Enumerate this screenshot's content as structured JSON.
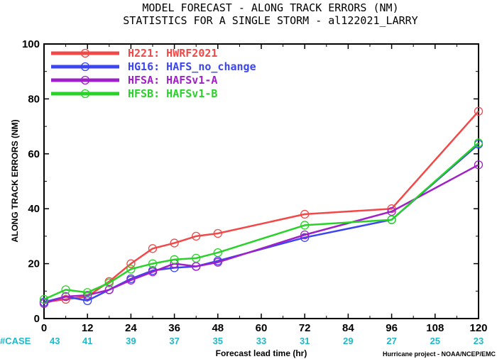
{
  "chart_data": {
    "type": "line",
    "title_lines": [
      "MODEL FORECAST - ALONG TRACK ERRORS (NM)",
      "STATISTICS FOR A SINGLE STORM - al122021_LARRY"
    ],
    "xlabel": "Forecast lead time (hr)",
    "ylabel": "ALONG TRACK ERRORS (NM)",
    "xlim": [
      0,
      120
    ],
    "ylim": [
      0,
      100
    ],
    "x_ticks": [
      0,
      12,
      24,
      36,
      48,
      60,
      72,
      84,
      96,
      108,
      120
    ],
    "y_ticks": [
      0,
      20,
      40,
      60,
      80,
      100
    ],
    "legend_position": "top-left",
    "case_label": "#CASE",
    "case_counts": [
      43,
      41,
      39,
      37,
      35,
      33,
      31,
      29,
      27,
      25,
      23
    ],
    "credit": "Hurricane project - NOAA/NCEP/EMC",
    "series": [
      {
        "name": "H221: HWRF2021",
        "color": "#f24848",
        "points": [
          [
            0,
            6
          ],
          [
            6,
            7
          ],
          [
            12,
            8
          ],
          [
            18,
            13.5
          ],
          [
            24,
            20
          ],
          [
            30,
            25.5
          ],
          [
            36,
            27.5
          ],
          [
            42,
            30
          ],
          [
            48,
            31
          ],
          [
            72,
            38
          ],
          [
            96,
            40
          ],
          [
            120,
            75.5
          ]
        ]
      },
      {
        "name": "HG16: HAFS_no_change",
        "color": "#3c46f0",
        "points": [
          [
            0,
            6
          ],
          [
            6,
            8
          ],
          [
            12,
            6.5
          ],
          [
            18,
            10.5
          ],
          [
            24,
            14.5
          ],
          [
            30,
            17.5
          ],
          [
            36,
            18.5
          ],
          [
            42,
            19
          ],
          [
            48,
            21
          ],
          [
            72,
            29.5
          ],
          [
            96,
            36
          ],
          [
            120,
            63.5
          ]
        ]
      },
      {
        "name": "HFSA: HAFSv1-A",
        "color": "#a020c8",
        "points": [
          [
            0,
            5.5
          ],
          [
            6,
            8
          ],
          [
            12,
            8.5
          ],
          [
            18,
            10.5
          ],
          [
            24,
            14
          ],
          [
            30,
            17
          ],
          [
            36,
            20
          ],
          [
            42,
            19
          ],
          [
            48,
            20.5
          ],
          [
            72,
            30.5
          ],
          [
            96,
            39
          ],
          [
            120,
            56
          ]
        ]
      },
      {
        "name": "HFSB: HAFSv1-B",
        "color": "#28d228",
        "points": [
          [
            0,
            7
          ],
          [
            6,
            10.5
          ],
          [
            12,
            9.5
          ],
          [
            18,
            13
          ],
          [
            24,
            18
          ],
          [
            30,
            20
          ],
          [
            36,
            21.5
          ],
          [
            42,
            22
          ],
          [
            48,
            24
          ],
          [
            72,
            34
          ],
          [
            96,
            36
          ],
          [
            120,
            64
          ]
        ]
      }
    ]
  }
}
